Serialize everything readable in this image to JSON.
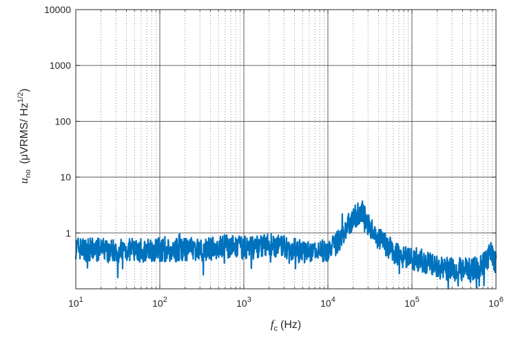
{
  "chart_data": {
    "type": "line",
    "xscale": "log",
    "yscale": "log",
    "xlim": [
      10,
      1000000
    ],
    "ylim": [
      0.1,
      10000
    ],
    "grid": true,
    "x_ticks": [
      10,
      100,
      1000,
      10000,
      100000,
      1000000
    ],
    "x_tick_labels": [
      {
        "base": "10",
        "exp": "1"
      },
      {
        "base": "10",
        "exp": "2"
      },
      {
        "base": "10",
        "exp": "3"
      },
      {
        "base": "10",
        "exp": "4"
      },
      {
        "base": "10",
        "exp": "5"
      },
      {
        "base": "10",
        "exp": "6"
      }
    ],
    "y_ticks": [
      1,
      10,
      100,
      1000,
      10000
    ],
    "y_tick_labels": [
      "1",
      "10",
      "100",
      "1000",
      "10000"
    ],
    "xlabel": {
      "var": "f",
      "sub": "c",
      "unit": "(Hz)"
    },
    "ylabel": {
      "var": "u",
      "sub": "no",
      "unit_pre": "(μVRMS/ Hz",
      "sup": "1/2",
      "unit_post": ")"
    },
    "series": [
      {
        "color": "#0072BD",
        "x": [
          10,
          13,
          16,
          20,
          25,
          32,
          40,
          50,
          63,
          80,
          100,
          130,
          160,
          200,
          250,
          320,
          400,
          500,
          630,
          800,
          1000,
          1300,
          1600,
          2000,
          2500,
          3200,
          4000,
          5000,
          6300,
          8000,
          10000,
          12000,
          14000,
          16000,
          18000,
          20000,
          22000,
          24000,
          26000,
          28000,
          30000,
          35000,
          40000,
          50000,
          63000,
          80000,
          100000,
          130000,
          160000,
          200000,
          250000,
          320000,
          400000,
          500000,
          630000,
          700000,
          800000,
          850000,
          900000,
          1000000
        ],
        "y": [
          0.55,
          0.5,
          0.5,
          0.5,
          0.5,
          0.48,
          0.5,
          0.5,
          0.48,
          0.5,
          0.5,
          0.48,
          0.5,
          0.5,
          0.52,
          0.5,
          0.52,
          0.55,
          0.58,
          0.55,
          0.55,
          0.55,
          0.6,
          0.62,
          0.58,
          0.55,
          0.5,
          0.45,
          0.45,
          0.45,
          0.5,
          0.6,
          0.8,
          1.1,
          1.5,
          1.8,
          2.1,
          2.3,
          2.1,
          1.8,
          1.5,
          1.0,
          0.8,
          0.6,
          0.45,
          0.38,
          0.35,
          0.32,
          0.28,
          0.25,
          0.23,
          0.22,
          0.22,
          0.22,
          0.24,
          0.28,
          0.35,
          0.45,
          0.38,
          0.3
        ]
      }
    ]
  }
}
